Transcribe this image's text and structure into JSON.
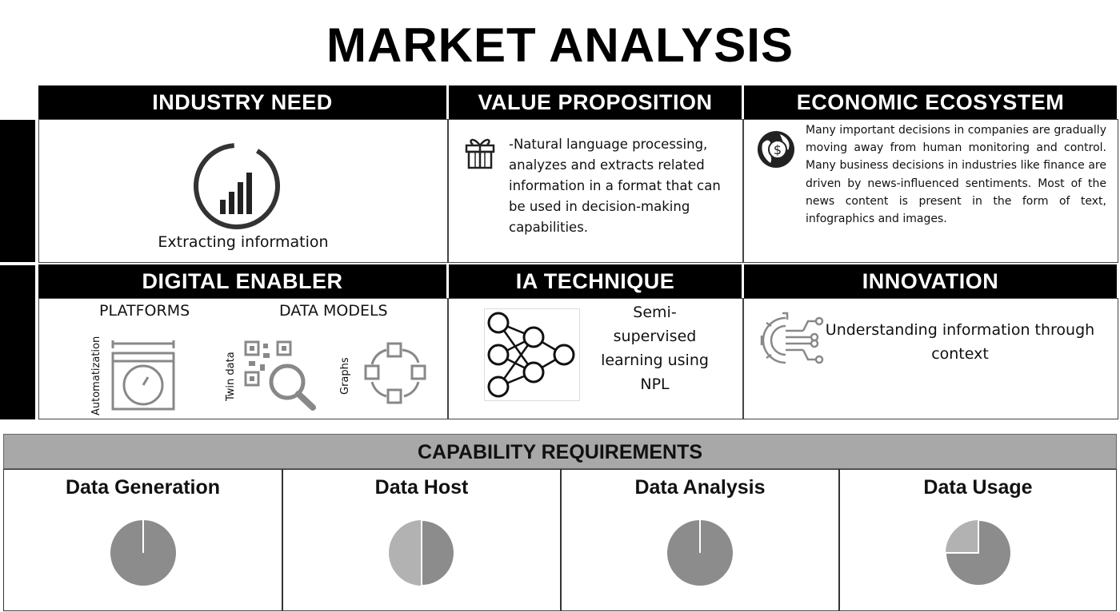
{
  "title": "MARKET ANALYSIS",
  "industry_need": {
    "header": "INDUSTRY NEED",
    "icon": "signal-bars-icon",
    "label": "Extracting information"
  },
  "value_proposition": {
    "header": "VALUE PROPOSITION",
    "icon": "gift-icon",
    "text": "-Natural language processing, analyzes and extracts related information in a format that can be used in decision-making capabilities."
  },
  "economic_ecosystem": {
    "header": "ECONOMIC ECOSYSTEM",
    "icon": "globe-dollar-icon",
    "text": "Many important decisions in companies are gradually moving away from human monitoring and control. Many business decisions in industries like finance are driven by news-influenced sentiments. Most of the news content is present in the form of text, infographics and images."
  },
  "digital_enabler": {
    "header": "DIGITAL ENABLER",
    "platforms_label": "PLATFORMS",
    "data_models_label": "DATA MODELS",
    "automatization_label": "Automatization",
    "twin_data_label": "Twin data",
    "graphs_label": "Graphs"
  },
  "ia_technique": {
    "header": "IA TECHNIQUE",
    "icon": "neural-network-icon",
    "text": "Semi-supervised learning using NPL"
  },
  "innovation": {
    "header": "INNOVATION",
    "icon": "gear-circuit-icon",
    "text": "Understanding information through context"
  },
  "capability": {
    "header": "CAPABILITY REQUIREMENTS",
    "items": [
      {
        "label": "Data Generation",
        "fraction": 1.0
      },
      {
        "label": "Data Host",
        "fraction": 0.5
      },
      {
        "label": "Data Analysis",
        "fraction": 1.0
      },
      {
        "label": "Data Usage",
        "fraction": 0.75
      }
    ],
    "colors": {
      "filled": "#8c8c8c",
      "empty": "#b2b2b2",
      "divider": "#ffffff"
    }
  }
}
